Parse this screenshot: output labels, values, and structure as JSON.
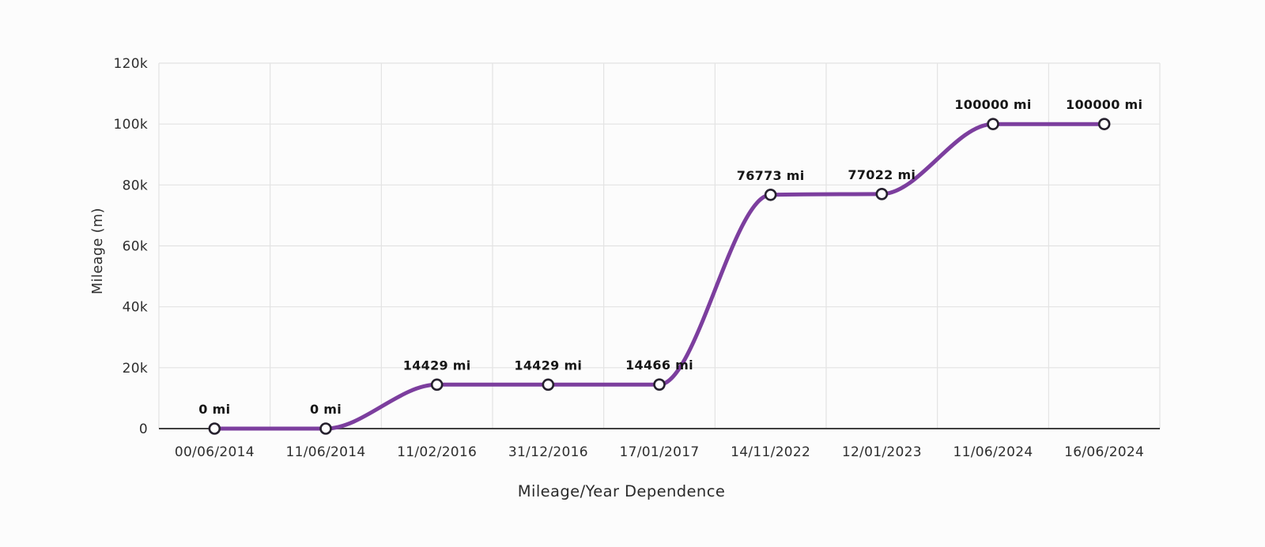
{
  "page": {
    "background": "#fcfcfc"
  },
  "chart_data": {
    "type": "line",
    "title": "Mileage/Year Dependence",
    "ylabel": "Mileage (m)",
    "xlabel": "",
    "categories": [
      "00/06/2014",
      "11/06/2014",
      "11/02/2016",
      "31/12/2016",
      "17/01/2017",
      "14/11/2022",
      "12/01/2023",
      "11/06/2024",
      "16/06/2024"
    ],
    "series": [
      {
        "name": "Mileage",
        "values": [
          0,
          0,
          14429,
          14429,
          14466,
          76773,
          77022,
          100000,
          100000
        ],
        "point_labels": [
          "0 mi",
          "0 mi",
          "14429 mi",
          "14429 mi",
          "14466 mi",
          "76773 mi",
          "77022 mi",
          "100000 mi",
          "100000 mi"
        ]
      }
    ],
    "y_tick_labels": [
      "0",
      "20k",
      "40k",
      "60k",
      "80k",
      "100k",
      "120k"
    ],
    "y_tick_values": [
      0,
      20000,
      40000,
      60000,
      80000,
      100000,
      120000
    ],
    "ylim": [
      0,
      120000
    ],
    "grid": true,
    "legend_position": "none",
    "curve": "monotone",
    "colors": {
      "line": "#7c3e9e",
      "marker_fill": "#ffffff",
      "marker_stroke": "#26212e",
      "grid": "#e3e3e3",
      "axis": "#3f3f3f",
      "point_label_text": "#161616",
      "tick_text": "#2e2e2e",
      "title_text": "#2b2b2b"
    }
  }
}
